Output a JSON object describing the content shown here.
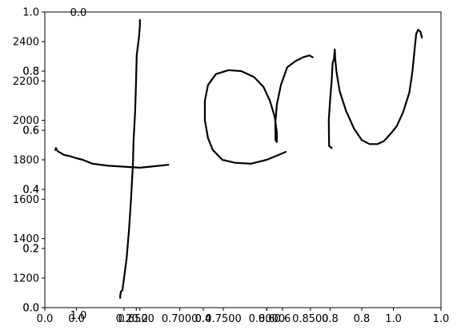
{
  "chart_data": [
    {
      "type": "line",
      "title": "",
      "xlabel": "",
      "ylabel": "",
      "xlim": [
        0,
        1
      ],
      "ylim": [
        0,
        1
      ],
      "xticks": [
        "0.0",
        "0.2",
        "0.4",
        "0.6",
        "0.8",
        "1.0"
      ],
      "yticks": [
        "0.0",
        "0.2",
        "0.4",
        "0.6",
        "0.8",
        "1.0"
      ],
      "grid": false,
      "series": []
    },
    {
      "type": "line",
      "title": "",
      "xlabel": "",
      "ylabel": "",
      "xlim": [
        -0.1,
        1.15
      ],
      "ylim": [
        1050,
        2550
      ],
      "xticks": [
        "0.0",
        "0.2",
        "0.4",
        "0.6",
        "0.8",
        "1.0"
      ],
      "yticks": [
        "1200",
        "1400",
        "1600",
        "1800",
        "2000",
        "2200",
        "2400"
      ],
      "grid": false,
      "series": [
        {
          "stroke": "horizontal-bar",
          "color": "#000000",
          "x": [
            -0.067,
            -0.065,
            -0.06,
            -0.04,
            -0.02,
            0.0,
            0.02,
            0.05,
            0.1,
            0.15,
            0.2,
            0.25,
            0.29
          ],
          "y": [
            1850,
            1860,
            1845,
            1825,
            1818,
            1808,
            1800,
            1780,
            1770,
            1765,
            1760,
            1768,
            1775
          ]
        },
        {
          "stroke": "vertical-bar",
          "color": "#000000",
          "x": [
            0.2,
            0.2,
            0.197,
            0.19,
            0.188,
            0.185,
            0.18,
            0.178,
            0.172,
            0.166,
            0.158,
            0.15,
            0.145,
            0.14,
            0.138,
            0.138
          ],
          "y": [
            2510,
            2480,
            2420,
            2330,
            2200,
            2050,
            1900,
            1780,
            1600,
            1450,
            1300,
            1200,
            1140,
            1130,
            1110,
            1100
          ]
        },
        {
          "stroke": "loop",
          "color": "#000000",
          "x": [
            0.66,
            0.63,
            0.6,
            0.55,
            0.5,
            0.46,
            0.43,
            0.415,
            0.405,
            0.405,
            0.415,
            0.44,
            0.48,
            0.52,
            0.56,
            0.59,
            0.61,
            0.625,
            0.632,
            0.632,
            0.628,
            0.627,
            0.632,
            0.645,
            0.665,
            0.69,
            0.715,
            0.735,
            0.745
          ],
          "y": [
            1840,
            1820,
            1800,
            1780,
            1785,
            1800,
            1850,
            1910,
            2000,
            2100,
            2180,
            2235,
            2255,
            2250,
            2220,
            2170,
            2100,
            2020,
            1940,
            1890,
            1900,
            1980,
            2080,
            2180,
            2270,
            2300,
            2320,
            2330,
            2320
          ]
        },
        {
          "stroke": "hook",
          "color": "#000000",
          "x": [
            0.805,
            0.797,
            0.796,
            0.8,
            0.805,
            0.808,
            0.812,
            0.815,
            0.816,
            0.82,
            0.83,
            0.85,
            0.875,
            0.9,
            0.925,
            0.95,
            0.97,
            0.99,
            1.01,
            1.03,
            1.05,
            1.06,
            1.065,
            1.068,
            1.072,
            1.078,
            1.085,
            1.09
          ],
          "y": [
            1860,
            1870,
            2000,
            2100,
            2200,
            2290,
            2310,
            2360,
            2320,
            2250,
            2150,
            2050,
            1960,
            1900,
            1880,
            1880,
            1895,
            1930,
            1970,
            2040,
            2140,
            2250,
            2330,
            2380,
            2440,
            2460,
            2450,
            2420
          ]
        }
      ]
    },
    {
      "type": "line",
      "title": "",
      "xlabel": "",
      "ylabel": "",
      "xlim": [
        0.545,
        1.0
      ],
      "ylim": [
        0,
        1
      ],
      "xticks": [
        "0.6500",
        "0.7000",
        "0.7500",
        "0.8000",
        "0.8500"
      ],
      "yticks": [
        "0.0",
        "0.2",
        "0.4",
        "0.6",
        "0.8"
      ],
      "grid": false,
      "series": []
    },
    {
      "type": "line",
      "title": "",
      "xlabel": "",
      "ylabel": "",
      "xlim": [
        0,
        1
      ],
      "ylim": [
        0,
        1
      ],
      "xticks": [],
      "yticks": [],
      "axis_labels": [
        "0.0",
        "1.0"
      ],
      "grid": false,
      "series": []
    }
  ]
}
